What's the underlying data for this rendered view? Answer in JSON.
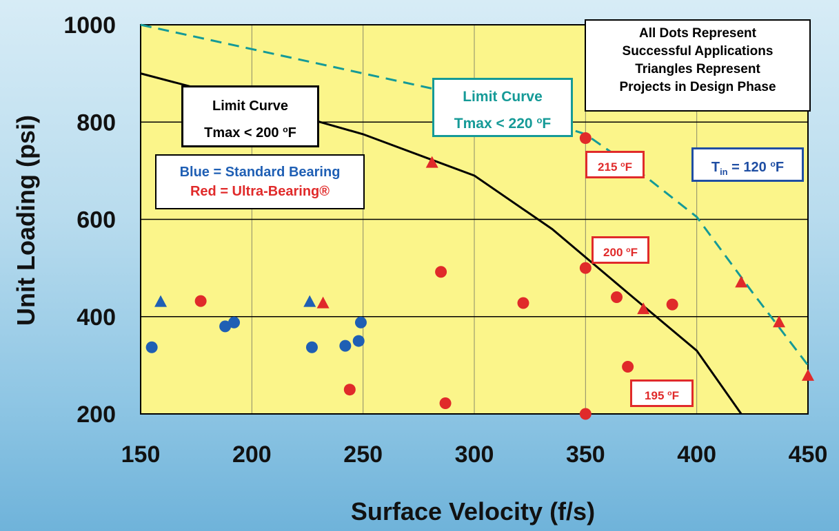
{
  "chart_data": {
    "type": "scatter",
    "xlabel": "Surface Velocity (f/s)",
    "ylabel": "Unit Loading (psi)",
    "xlim": [
      150,
      450
    ],
    "ylim": [
      200,
      1000
    ],
    "x_ticks": [
      "150",
      "200",
      "250",
      "300",
      "350",
      "400",
      "450"
    ],
    "y_ticks": [
      "200",
      "400",
      "600",
      "800",
      "1000"
    ],
    "grid": true,
    "plot_background": "#fbf58a",
    "curves": [
      {
        "name": "Limit Curve Tmax < 200 °F",
        "style": "solid",
        "color": "#000000",
        "points": [
          [
            150,
            900
          ],
          [
            200,
            840
          ],
          [
            250,
            775
          ],
          [
            300,
            690
          ],
          [
            335,
            580
          ],
          [
            370,
            445
          ],
          [
            400,
            330
          ],
          [
            420,
            200
          ]
        ]
      },
      {
        "name": "Limit Curve Tmax < 220 °F",
        "style": "dashed",
        "color": "#159a97",
        "points": [
          [
            150,
            1000
          ],
          [
            200,
            950
          ],
          [
            250,
            900
          ],
          [
            300,
            850
          ],
          [
            350,
            775
          ],
          [
            375,
            695
          ],
          [
            400,
            605
          ],
          [
            425,
            450
          ],
          [
            450,
            300
          ]
        ]
      }
    ],
    "series": [
      {
        "name": "Standard Bearing (Successful)",
        "marker": "circle",
        "color": "#1f5fb4",
        "points": [
          [
            155,
            337
          ],
          [
            188,
            380
          ],
          [
            192,
            388
          ],
          [
            227,
            337
          ],
          [
            242,
            340
          ],
          [
            248,
            350
          ],
          [
            249,
            388
          ]
        ]
      },
      {
        "name": "Standard Bearing (Design Phase)",
        "marker": "triangle",
        "color": "#1f5fb4",
        "points": [
          [
            159,
            430
          ],
          [
            226,
            430
          ]
        ]
      },
      {
        "name": "Ultra-Bearing (Successful)",
        "marker": "circle",
        "color": "#e02a2a",
        "points": [
          [
            177,
            432
          ],
          [
            244,
            250
          ],
          [
            285,
            492
          ],
          [
            287,
            222
          ],
          [
            322,
            428
          ],
          [
            350,
            200
          ],
          [
            350,
            500
          ],
          [
            350,
            767
          ],
          [
            364,
            440
          ],
          [
            369,
            297
          ],
          [
            389,
            425
          ]
        ]
      },
      {
        "name": "Ultra-Bearing (Design Phase)",
        "marker": "triangle",
        "color": "#e02a2a",
        "points": [
          [
            232,
            427
          ],
          [
            281,
            716
          ],
          [
            376,
            415
          ],
          [
            420,
            470
          ],
          [
            437,
            388
          ],
          [
            450,
            278
          ]
        ]
      }
    ]
  },
  "annotations": {
    "legend_note": [
      "All Dots Represent",
      "Successful Applications",
      "Triangles Represent",
      "Projects in Design Phase"
    ],
    "limit_200": {
      "line1": "Limit Curve",
      "line2_prefix": "Tmax < 200 ",
      "sup": "o",
      "unit": "F"
    },
    "limit_220": {
      "line1": "Limit Curve",
      "line2_prefix": "Tmax < 220 ",
      "sup": "o",
      "unit": "F"
    },
    "color_key": {
      "blue": "Blue = Standard Bearing",
      "red": "Red = Ultra-Bearing®"
    },
    "tin": {
      "t": "T",
      "sub": "in",
      "rest": " = 120 ",
      "sup": "o",
      "unit": "F"
    },
    "temps": [
      {
        "value": "215 ",
        "sup": "o",
        "unit": "F"
      },
      {
        "value": "200 ",
        "sup": "o",
        "unit": "F"
      },
      {
        "value": "195 ",
        "sup": "o",
        "unit": "F"
      }
    ]
  }
}
